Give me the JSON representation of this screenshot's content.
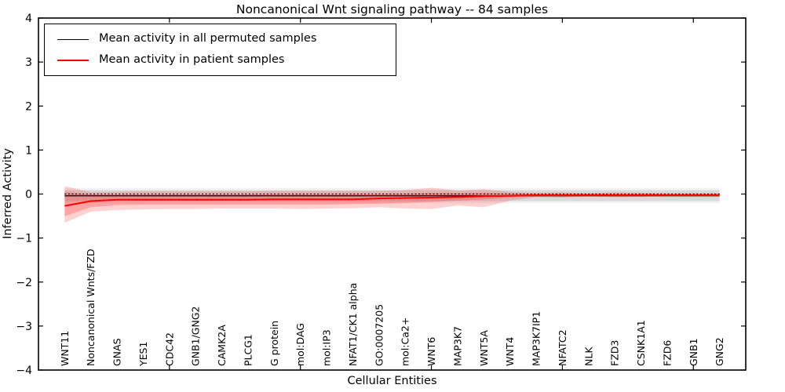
{
  "chart_data": {
    "type": "line",
    "title": "Noncanonical Wnt signaling pathway -- 84 samples",
    "xlabel": "Cellular Entities",
    "ylabel": "Inferred Activity",
    "ylim": [
      -4,
      4
    ],
    "xlim": [
      0,
      27
    ],
    "grid": false,
    "legend_position": "upper left",
    "categories": [
      "WNT11",
      "Noncanonical Wnts/FZD",
      "GNAS",
      "YES1",
      "CDC42",
      "GNB1/GNG2",
      "CAMK2A",
      "PLCG1",
      "G protein",
      "mol:DAG",
      "mol:IP3",
      "NFAT1/CK1 alpha",
      "GO:0007205",
      "mol:Ca2+",
      "WNT6",
      "MAP3K7",
      "WNT5A",
      "WNT4",
      "MAP3K7IP1",
      "NFATC2",
      "NLK",
      "FZD3",
      "CSNK1A1",
      "FZD6",
      "GNB1",
      "GNG2"
    ],
    "series": [
      {
        "name": "Mean activity in all permuted samples",
        "color": "#000000",
        "width": 1.2,
        "values": [
          -0.04,
          -0.04,
          -0.04,
          -0.04,
          -0.04,
          -0.04,
          -0.04,
          -0.04,
          -0.04,
          -0.04,
          -0.04,
          -0.04,
          -0.04,
          -0.04,
          -0.04,
          -0.04,
          -0.04,
          -0.04,
          -0.04,
          -0.04,
          -0.04,
          -0.04,
          -0.04,
          -0.04,
          -0.04,
          -0.04
        ]
      },
      {
        "name": "Mean activity in patient samples",
        "color": "#ff0000",
        "width": 2.0,
        "values": [
          -0.27,
          -0.16,
          -0.13,
          -0.13,
          -0.13,
          -0.13,
          -0.13,
          -0.13,
          -0.12,
          -0.12,
          -0.12,
          -0.12,
          -0.1,
          -0.09,
          -0.08,
          -0.07,
          -0.05,
          -0.04,
          -0.03,
          -0.03,
          -0.03,
          -0.03,
          -0.03,
          -0.03,
          -0.03,
          -0.03
        ]
      }
    ],
    "bands": [
      {
        "name": "permuted-band-outer",
        "color": "rgba(0,0,0,0.05)",
        "hi": [
          0.14,
          0.14,
          0.14,
          0.14,
          0.14,
          0.14,
          0.14,
          0.14,
          0.14,
          0.14,
          0.14,
          0.14,
          0.14,
          0.14,
          0.14,
          0.14,
          0.14,
          0.14,
          0.14,
          0.14,
          0.14,
          0.14,
          0.14,
          0.14,
          0.14,
          0.14
        ],
        "lo": [
          -0.21,
          -0.21,
          -0.21,
          -0.21,
          -0.21,
          -0.21,
          -0.21,
          -0.21,
          -0.21,
          -0.21,
          -0.21,
          -0.21,
          -0.21,
          -0.21,
          -0.21,
          -0.21,
          -0.21,
          -0.21,
          -0.21,
          -0.21,
          -0.21,
          -0.21,
          -0.21,
          -0.21,
          -0.21,
          -0.21
        ]
      },
      {
        "name": "permuted-band-inner",
        "color": "rgba(0,0,0,0.10)",
        "hi": [
          0.09,
          0.09,
          0.09,
          0.09,
          0.09,
          0.09,
          0.09,
          0.09,
          0.09,
          0.09,
          0.09,
          0.09,
          0.09,
          0.09,
          0.09,
          0.09,
          0.09,
          0.09,
          0.09,
          0.09,
          0.09,
          0.09,
          0.09,
          0.09,
          0.09,
          0.09
        ],
        "lo": [
          -0.16,
          -0.16,
          -0.16,
          -0.16,
          -0.16,
          -0.16,
          -0.16,
          -0.16,
          -0.16,
          -0.16,
          -0.16,
          -0.16,
          -0.16,
          -0.16,
          -0.16,
          -0.16,
          -0.16,
          -0.16,
          -0.16,
          -0.16,
          -0.16,
          -0.16,
          -0.16,
          -0.16,
          -0.16,
          -0.16
        ]
      },
      {
        "name": "patient-band-outer",
        "color": "rgba(255,0,0,0.18)",
        "hi": [
          0.18,
          0.04,
          0.05,
          0.06,
          0.06,
          0.06,
          0.06,
          0.06,
          0.07,
          0.07,
          0.07,
          0.07,
          0.07,
          0.09,
          0.14,
          0.08,
          0.11,
          0.05,
          0.03,
          0.04,
          0.02,
          0.04,
          0.03,
          0.02,
          0.02,
          0.02
        ],
        "lo": [
          -0.65,
          -0.4,
          -0.36,
          -0.35,
          -0.34,
          -0.34,
          -0.33,
          -0.33,
          -0.33,
          -0.34,
          -0.33,
          -0.32,
          -0.3,
          -0.33,
          -0.34,
          -0.26,
          -0.3,
          -0.15,
          -0.07,
          -0.08,
          -0.05,
          -0.07,
          -0.06,
          -0.04,
          -0.04,
          -0.04
        ]
      },
      {
        "name": "patient-band-inner",
        "color": "rgba(255,0,0,0.22)",
        "hi": [
          0.05,
          -0.01,
          -0.01,
          -0.01,
          -0.01,
          -0.01,
          -0.01,
          -0.01,
          0.0,
          0.0,
          0.0,
          0.0,
          0.0,
          0.01,
          0.03,
          0.02,
          0.03,
          0.01,
          0.01,
          0.01,
          0.01,
          0.01,
          0.01,
          0.01,
          0.01,
          0.01
        ],
        "lo": [
          -0.5,
          -0.3,
          -0.25,
          -0.24,
          -0.24,
          -0.24,
          -0.24,
          -0.24,
          -0.24,
          -0.24,
          -0.24,
          -0.23,
          -0.22,
          -0.2,
          -0.18,
          -0.15,
          -0.12,
          -0.08,
          -0.04,
          -0.05,
          -0.04,
          -0.05,
          -0.04,
          -0.03,
          -0.03,
          -0.03
        ]
      }
    ],
    "reference_line": {
      "y": 0,
      "style": "dotted",
      "color": "#000000"
    }
  },
  "axis": {
    "ytick_values": [
      4,
      3,
      2,
      1,
      0,
      -1,
      -2,
      -3,
      -4
    ],
    "ytick_labels": [
      "4",
      "3",
      "2",
      "1",
      "0",
      "−1",
      "−2",
      "−3",
      "−4"
    ],
    "xtick_values": [
      5,
      10,
      15,
      20,
      25
    ]
  },
  "legend": {
    "entries": [
      {
        "label": "Mean activity in all permuted samples",
        "color": "#000000"
      },
      {
        "label": "Mean activity in patient samples",
        "color": "#ff0000"
      }
    ]
  }
}
